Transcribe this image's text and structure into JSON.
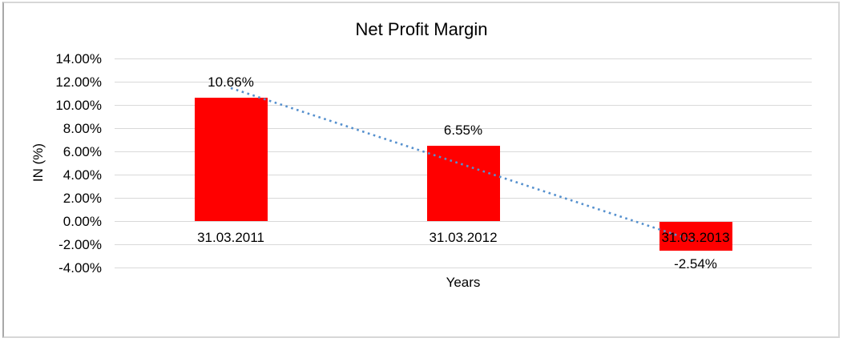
{
  "chart_data": {
    "type": "bar",
    "title": "Net Profit Margin",
    "xlabel": "Years",
    "ylabel": "IN (%)",
    "categories": [
      "31.03.2011",
      "31.03.2012",
      "31.03.2013"
    ],
    "values": [
      10.66,
      6.55,
      -2.54
    ],
    "data_labels": [
      "10.66%",
      "6.55%",
      "-2.54%"
    ],
    "y_ticks": [
      {
        "label": "14.00%",
        "value": 14
      },
      {
        "label": "12.00%",
        "value": 12
      },
      {
        "label": "10.00%",
        "value": 10
      },
      {
        "label": "8.00%",
        "value": 8
      },
      {
        "label": "6.00%",
        "value": 6
      },
      {
        "label": "4.00%",
        "value": 4
      },
      {
        "label": "2.00%",
        "value": 2
      },
      {
        "label": "0.00%",
        "value": 0
      },
      {
        "label": "-2.00%",
        "value": -2
      },
      {
        "label": "-4.00%",
        "value": -4
      }
    ],
    "ylim": [
      -4,
      14
    ],
    "grid": true,
    "legend": "none",
    "bar_color": "#ff0000",
    "gridline_color": "#d9d9d9",
    "trendline": {
      "kind": "linear",
      "style": "dotted",
      "color": "#5590ce"
    }
  }
}
